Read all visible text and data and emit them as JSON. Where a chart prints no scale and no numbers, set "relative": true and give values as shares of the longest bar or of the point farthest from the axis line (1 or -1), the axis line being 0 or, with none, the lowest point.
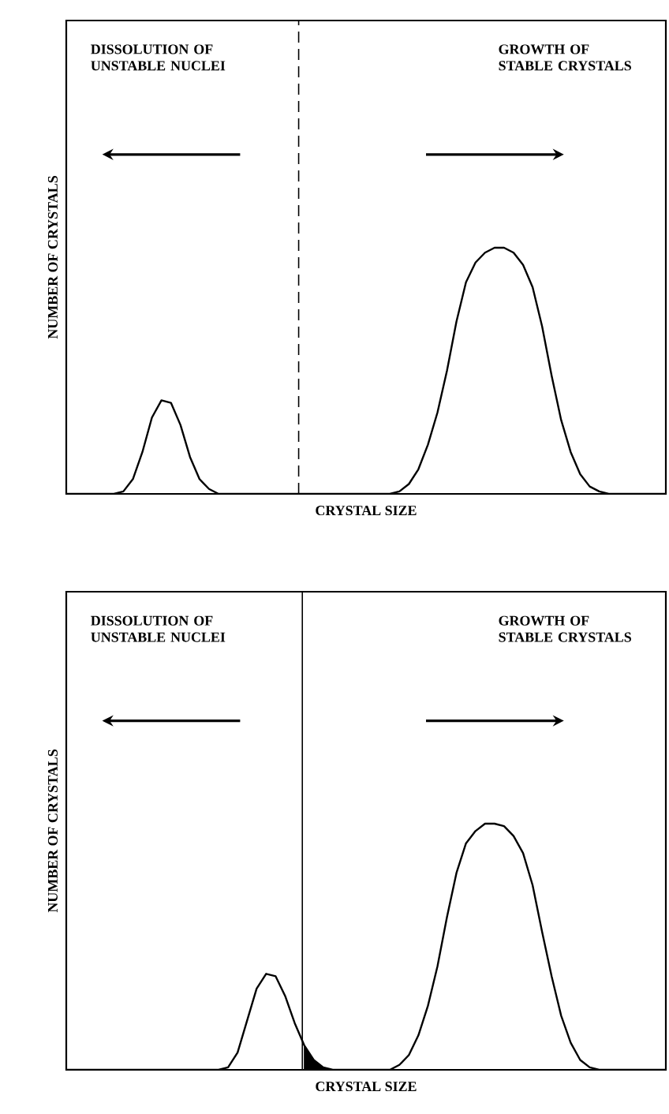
{
  "chart_data": [
    {
      "type": "line",
      "relative": true,
      "tick_labels": false,
      "xlabel": "CRYSTAL SIZE",
      "ylabel": "NUMBER OF CRYSTALS",
      "categories": [
        null,
        null,
        null,
        null,
        null,
        null,
        null,
        null,
        null,
        null,
        null,
        null,
        null,
        null,
        null,
        null,
        null,
        null,
        null,
        null,
        null,
        null,
        null,
        null,
        null,
        null,
        null,
        null,
        null,
        null,
        null,
        null,
        null,
        null,
        null,
        null,
        null,
        null,
        null,
        null,
        null,
        null,
        null,
        null,
        null,
        null,
        null,
        null,
        null,
        null,
        null,
        null,
        null,
        null,
        null,
        null,
        null,
        null,
        null,
        null,
        null,
        null,
        null,
        null
      ],
      "series": [
        {
          "color": "#000000",
          "values": [
            0,
            0,
            0,
            0,
            0,
            0,
            0.01,
            0.06,
            0.17,
            0.31,
            0.38,
            0.37,
            0.28,
            0.15,
            0.06,
            0.02,
            0,
            0,
            0,
            0,
            0,
            0,
            0,
            0,
            0,
            0,
            0,
            0,
            0,
            0,
            0,
            0,
            0,
            0,
            0,
            0.01,
            0.04,
            0.1,
            0.2,
            0.33,
            0.5,
            0.7,
            0.86,
            0.94,
            0.98,
            1,
            1,
            0.98,
            0.93,
            0.84,
            0.68,
            0.48,
            0.3,
            0.17,
            0.08,
            0.03,
            0.01,
            0,
            0,
            0,
            0,
            0,
            0,
            0
          ]
        }
      ],
      "annotations": [
        "DISSOLUTION OF UNSTABLE NUCLEI",
        "GROWTH OF STABLE CRYSTALS"
      ]
    },
    {
      "type": "line",
      "relative": true,
      "tick_labels": false,
      "xlabel": "CRYSTAL SIZE",
      "ylabel": "NUMBER OF CRYSTALS",
      "categories": [
        null,
        null,
        null,
        null,
        null,
        null,
        null,
        null,
        null,
        null,
        null,
        null,
        null,
        null,
        null,
        null,
        null,
        null,
        null,
        null,
        null,
        null,
        null,
        null,
        null,
        null,
        null,
        null,
        null,
        null,
        null,
        null,
        null,
        null,
        null,
        null,
        null,
        null,
        null,
        null,
        null,
        null,
        null,
        null,
        null,
        null,
        null,
        null,
        null,
        null,
        null,
        null,
        null,
        null,
        null,
        null,
        null,
        null,
        null,
        null,
        null,
        null,
        null,
        null
      ],
      "series": [
        {
          "color": "#000000",
          "values": [
            0,
            0,
            0,
            0,
            0,
            0,
            0,
            0,
            0,
            0,
            0,
            0,
            0,
            0,
            0,
            0,
            0,
            0.01,
            0.07,
            0.2,
            0.33,
            0.39,
            0.38,
            0.3,
            0.19,
            0.1,
            0.04,
            0.01,
            0,
            0,
            0,
            0,
            0,
            0,
            0,
            0.02,
            0.06,
            0.14,
            0.26,
            0.42,
            0.62,
            0.8,
            0.92,
            0.97,
            1,
            1,
            0.99,
            0.95,
            0.88,
            0.75,
            0.56,
            0.38,
            0.22,
            0.11,
            0.04,
            0.01,
            0,
            0,
            0,
            0,
            0,
            0,
            0,
            0
          ]
        },
        {
          "type": "area",
          "color": "#000000",
          "values": [
            null,
            null,
            null,
            null,
            null,
            null,
            null,
            null,
            null,
            null,
            null,
            null,
            null,
            null,
            null,
            null,
            null,
            null,
            null,
            null,
            null,
            null,
            null,
            null,
            null,
            0.1,
            0.04,
            0.01,
            0,
            null,
            null,
            null,
            null,
            null,
            null,
            null,
            null,
            null,
            null,
            null,
            null,
            null,
            null,
            null,
            null,
            null,
            null,
            null,
            null,
            null,
            null,
            null,
            null,
            null,
            null,
            null,
            null,
            null,
            null,
            null,
            null,
            null,
            null,
            null
          ]
        }
      ],
      "annotations": [
        "DISSOLUTION OF UNSTABLE NUCLEI",
        "GROWTH OF STABLE CRYSTALS"
      ]
    }
  ]
}
